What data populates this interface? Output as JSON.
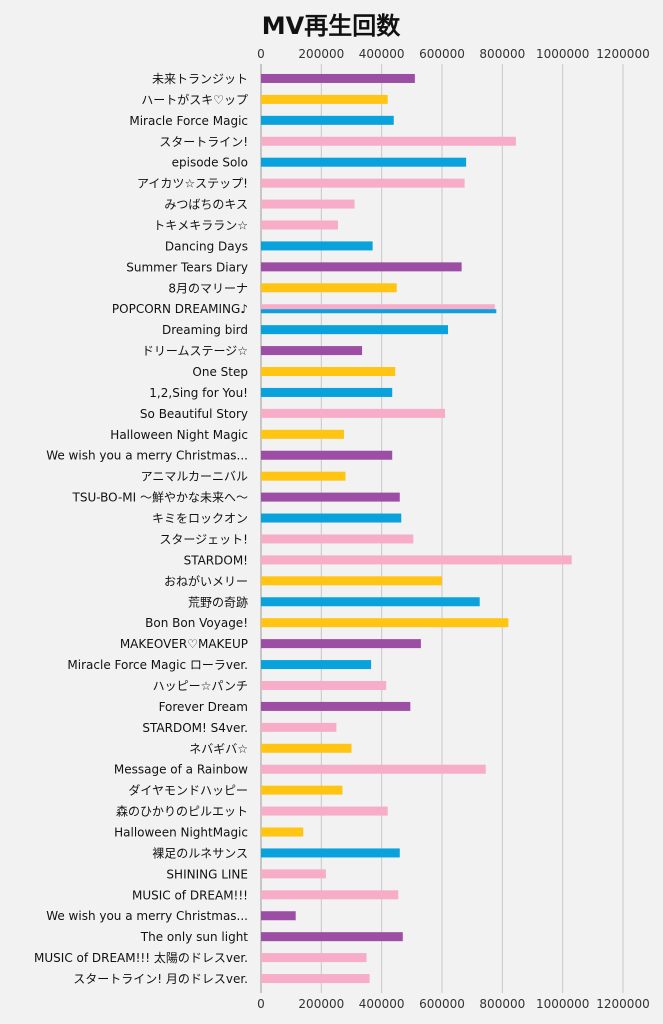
{
  "chart_data": {
    "type": "bar",
    "orientation": "horizontal",
    "title": "MV再生回数",
    "xlabel": "",
    "ylabel": "",
    "xlim": [
      0,
      1200000
    ],
    "x_ticks": [
      0,
      200000,
      400000,
      600000,
      800000,
      1000000,
      1200000
    ],
    "x_tick_labels": [
      "0",
      "200000",
      "400000",
      "600000",
      "800000",
      "1000000",
      "1200000"
    ],
    "grid": true,
    "legend": "none",
    "colors": {
      "purple": "#9b4ea3",
      "yellow": "#ffc512",
      "blue": "#0aa2dc",
      "pink": "#f7adc8"
    },
    "bars": [
      {
        "label": "未来トランジット",
        "value": 510000,
        "color": "purple"
      },
      {
        "label": "ハートがスキ♡ップ",
        "value": 420000,
        "color": "yellow"
      },
      {
        "label": "Miracle Force Magic",
        "value": 440000,
        "color": "blue"
      },
      {
        "label": "スタートライン!",
        "value": 845000,
        "color": "pink"
      },
      {
        "label": "episode Solo",
        "value": 680000,
        "color": "blue"
      },
      {
        "label": "アイカツ☆ステップ!",
        "value": 675000,
        "color": "pink"
      },
      {
        "label": "みつばちのキス",
        "value": 310000,
        "color": "pink"
      },
      {
        "label": "トキメキララン☆",
        "value": 255000,
        "color": "pink"
      },
      {
        "label": "Dancing Days",
        "value": 370000,
        "color": "blue"
      },
      {
        "label": "Summer Tears Diary",
        "value": 665000,
        "color": "purple"
      },
      {
        "label": "8月のマリーナ",
        "value": 450000,
        "color": "yellow"
      },
      {
        "label": "POPCORN DREAMING♪",
        "value": 775000,
        "color": "pink",
        "overlay": {
          "value": 780000,
          "color": "blue"
        }
      },
      {
        "label": "Dreaming bird",
        "value": 620000,
        "color": "blue"
      },
      {
        "label": "ドリームステージ☆",
        "value": 335000,
        "color": "purple"
      },
      {
        "label": "One Step",
        "value": 445000,
        "color": "yellow"
      },
      {
        "label": "1,2,Sing for You!",
        "value": 435000,
        "color": "blue"
      },
      {
        "label": "So Beautiful Story",
        "value": 610000,
        "color": "pink"
      },
      {
        "label": "Halloween Night Magic",
        "value": 275000,
        "color": "yellow"
      },
      {
        "label": "We wish you a merry Christmas...",
        "value": 435000,
        "color": "purple"
      },
      {
        "label": "アニマルカーニバル",
        "value": 280000,
        "color": "yellow"
      },
      {
        "label": "TSU-BO-MI ～鮮やかな未来へ～",
        "value": 460000,
        "color": "purple"
      },
      {
        "label": "キミをロックオン",
        "value": 465000,
        "color": "blue"
      },
      {
        "label": "スタージェット!",
        "value": 505000,
        "color": "pink"
      },
      {
        "label": "STARDOM!",
        "value": 1030000,
        "color": "pink"
      },
      {
        "label": "おねがいメリー",
        "value": 600000,
        "color": "yellow"
      },
      {
        "label": "荒野の奇跡",
        "value": 725000,
        "color": "blue"
      },
      {
        "label": "Bon Bon Voyage!",
        "value": 820000,
        "color": "yellow"
      },
      {
        "label": "MAKEOVER♡MAKEUP",
        "value": 530000,
        "color": "purple"
      },
      {
        "label": "Miracle Force Magic ローラver.",
        "value": 365000,
        "color": "blue"
      },
      {
        "label": "ハッピー☆パンチ",
        "value": 415000,
        "color": "pink"
      },
      {
        "label": "Forever Dream",
        "value": 495000,
        "color": "purple"
      },
      {
        "label": "STARDOM! S4ver.",
        "value": 250000,
        "color": "pink"
      },
      {
        "label": "ネバギバ☆",
        "value": 300000,
        "color": "yellow"
      },
      {
        "label": "Message of a Rainbow",
        "value": 745000,
        "color": "pink"
      },
      {
        "label": "ダイヤモンドハッピー",
        "value": 270000,
        "color": "yellow"
      },
      {
        "label": "森のひかりのピルエット",
        "value": 420000,
        "color": "pink"
      },
      {
        "label": "Halloween NightMagic",
        "value": 140000,
        "color": "yellow"
      },
      {
        "label": "裸足のルネサンス",
        "value": 460000,
        "color": "blue"
      },
      {
        "label": "SHINING LINE",
        "value": 215000,
        "color": "pink"
      },
      {
        "label": "MUSIC of DREAM!!!",
        "value": 455000,
        "color": "pink"
      },
      {
        "label": "We wish you a merry Christmas...",
        "value": 115000,
        "color": "purple"
      },
      {
        "label": "The only sun light",
        "value": 470000,
        "color": "purple"
      },
      {
        "label": "MUSIC of DREAM!!! 太陽のドレスver.",
        "value": 350000,
        "color": "pink"
      },
      {
        "label": "スタートライン! 月のドレスver.",
        "value": 360000,
        "color": "pink"
      }
    ]
  }
}
